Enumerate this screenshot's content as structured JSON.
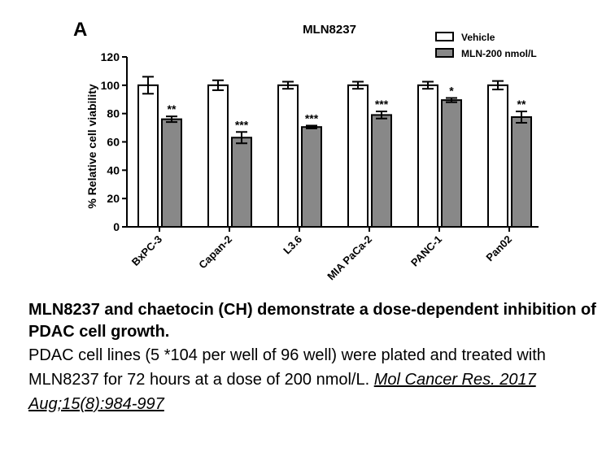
{
  "figure": {
    "panel_label": "A",
    "caption_title": "MLN8237 and chaetocin (CH) demonstrate a dose-dependent inhibition of PDAC cell growth.",
    "caption_text": "PDAC cell lines (5 *104 per well of 96 well) were plated and treated with MLN8237 for 72 hours at a dose of 200 nmol/L.",
    "citation": "Mol Cancer Res. 2017 Aug;15(8):984-997"
  },
  "colors": {
    "vehicle_fill": "#ffffff",
    "treated_fill": "#888888",
    "stroke": "#000000"
  },
  "chart_data": {
    "type": "bar",
    "title": "MLN8237",
    "xlabel": "",
    "ylabel": "% Relative cell viability",
    "ylim": [
      0,
      120
    ],
    "yticks": [
      0,
      20,
      40,
      60,
      80,
      100,
      120
    ],
    "legend_position": "top-right",
    "categories": [
      "BxPC-3",
      "Capan-2",
      "L3.6",
      "MIA PaCa-2",
      "PANC-1",
      "Pan02"
    ],
    "series": [
      {
        "name": "Vehicle",
        "values": [
          100,
          100,
          100,
          100,
          100,
          100
        ],
        "errors": [
          6,
          3.5,
          2.5,
          2.5,
          2.5,
          3
        ],
        "significance": [
          "",
          "",
          "",
          "",
          "",
          ""
        ]
      },
      {
        "name": "MLN-200 nmol/L",
        "values": [
          76,
          63,
          70.5,
          79,
          89.5,
          77.5
        ],
        "errors": [
          2,
          4,
          1,
          2.5,
          1.5,
          4
        ],
        "significance": [
          "**",
          "***",
          "***",
          "***",
          "*",
          "**"
        ]
      }
    ]
  }
}
